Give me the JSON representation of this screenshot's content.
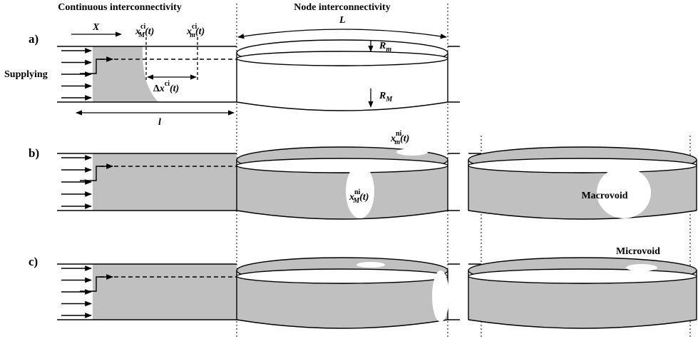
{
  "headers": {
    "continuous": "Continuous interconnectivity",
    "node": "Node interconnectivity"
  },
  "panels": {
    "a": "a)",
    "b": "b)",
    "c": "c)"
  },
  "labels": {
    "X": "X",
    "L": "L",
    "l": "l",
    "supplying": "Supplying",
    "R_m": {
      "base": "R",
      "sub": "m"
    },
    "R_M": {
      "base": "R",
      "sub": "M"
    },
    "x_M_ci": {
      "base": "x",
      "sup": "ci",
      "sub": "M",
      "arg": "(t)"
    },
    "x_m_ci": {
      "base": "x",
      "sup": "ci",
      "sub": "m",
      "arg": "(t)"
    },
    "delta_ci": {
      "prefix": "Δ",
      "base": "x",
      "sup": "ci",
      "arg": "(t)"
    },
    "x_m_ni": {
      "base": "x",
      "sup": "ni",
      "sub": "m",
      "arg": "(t)"
    },
    "x_M_ni": {
      "base": "x",
      "sup": "ni",
      "sub": "M",
      "arg": "(t)"
    },
    "macrovoid": "Macrovoid",
    "microvoid": "Microvoid"
  }
}
